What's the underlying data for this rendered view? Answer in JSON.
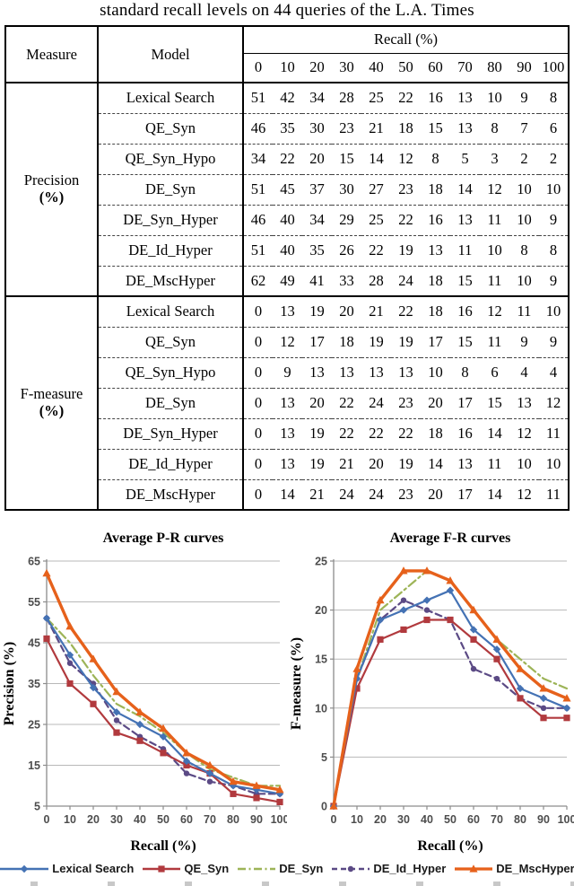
{
  "caption": "standard recall levels on 44 queries of the L.A. Times",
  "table": {
    "measure_header": "Measure",
    "model_header": "Model",
    "recall_header": "Recall (%)",
    "recall_levels": [
      "0",
      "10",
      "20",
      "30",
      "40",
      "50",
      "60",
      "70",
      "80",
      "90",
      "100"
    ],
    "sections": [
      {
        "measure": "Precision",
        "unit": "(%)",
        "rows": [
          {
            "model": "Lexical Search",
            "values": [
              51,
              42,
              34,
              28,
              25,
              22,
              16,
              13,
              10,
              9,
              8
            ]
          },
          {
            "model": "QE_Syn",
            "values": [
              46,
              35,
              30,
              23,
              21,
              18,
              15,
              13,
              8,
              7,
              6
            ]
          },
          {
            "model": "QE_Syn_Hypo",
            "values": [
              34,
              22,
              20,
              15,
              14,
              12,
              8,
              5,
              3,
              2,
              2
            ]
          },
          {
            "model": "DE_Syn",
            "values": [
              51,
              45,
              37,
              30,
              27,
              23,
              18,
              14,
              12,
              10,
              10
            ]
          },
          {
            "model": "DE_Syn_Hyper",
            "values": [
              46,
              40,
              34,
              29,
              25,
              22,
              16,
              13,
              11,
              10,
              9
            ]
          },
          {
            "model": "DE_Id_Hyper",
            "values": [
              51,
              40,
              35,
              26,
              22,
              19,
              13,
              11,
              10,
              8,
              8
            ]
          },
          {
            "model": "DE_MscHyper",
            "values": [
              62,
              49,
              41,
              33,
              28,
              24,
              18,
              15,
              11,
              10,
              9
            ]
          }
        ]
      },
      {
        "measure": "F-measure",
        "unit": "(%)",
        "rows": [
          {
            "model": "Lexical Search",
            "values": [
              0,
              13,
              19,
              20,
              21,
              22,
              18,
              16,
              12,
              11,
              10
            ]
          },
          {
            "model": "QE_Syn",
            "values": [
              0,
              12,
              17,
              18,
              19,
              19,
              17,
              15,
              11,
              9,
              9
            ]
          },
          {
            "model": "QE_Syn_Hypo",
            "values": [
              0,
              9,
              13,
              13,
              13,
              13,
              10,
              8,
              6,
              4,
              4
            ]
          },
          {
            "model": "DE_Syn",
            "values": [
              0,
              13,
              20,
              22,
              24,
              23,
              20,
              17,
              15,
              13,
              12
            ]
          },
          {
            "model": "DE_Syn_Hyper",
            "values": [
              0,
              13,
              19,
              22,
              22,
              22,
              18,
              16,
              14,
              12,
              11
            ]
          },
          {
            "model": "DE_Id_Hyper",
            "values": [
              0,
              13,
              19,
              21,
              20,
              19,
              14,
              13,
              11,
              10,
              10
            ]
          },
          {
            "model": "DE_MscHyper",
            "values": [
              0,
              14,
              21,
              24,
              24,
              23,
              20,
              17,
              14,
              12,
              11
            ]
          }
        ]
      }
    ]
  },
  "series_styles": {
    "Lexical Search": {
      "color": "#4472B4",
      "marker": "diamond",
      "dash": "solid",
      "width": 2.2
    },
    "QE_Syn": {
      "color": "#B13A3E",
      "marker": "square",
      "dash": "solid",
      "width": 2.2
    },
    "DE_Syn": {
      "color": "#9DB457",
      "marker": "none",
      "dash": "dashdot",
      "width": 2.2
    },
    "DE_Id_Hyper": {
      "color": "#5B4A85",
      "marker": "circle",
      "dash": "dashed",
      "width": 2.2
    },
    "DE_MscHyper": {
      "color": "#E6611B",
      "marker": "triangle",
      "dash": "solid",
      "width": 3.4
    }
  },
  "chart_colors": {
    "grid": "#b8b8b8",
    "axis": "#8c8c8c",
    "tick_text": "#4d4d4d"
  },
  "chart_data": [
    {
      "type": "line",
      "title": "Average P-R curves",
      "xlabel": "Recall (%)",
      "ylabel": "Precision (%)",
      "x": [
        0,
        10,
        20,
        30,
        40,
        50,
        60,
        70,
        80,
        90,
        100
      ],
      "xlim": [
        0,
        100
      ],
      "ylim": [
        5,
        65
      ],
      "yticks": [
        5,
        15,
        25,
        35,
        45,
        55,
        65
      ],
      "grid": true,
      "legend_position": "bottom-shared",
      "series": [
        {
          "name": "DE_Syn",
          "values": [
            51,
            45,
            37,
            30,
            27,
            23,
            18,
            14,
            12,
            10,
            10
          ]
        },
        {
          "name": "DE_Id_Hyper",
          "values": [
            51,
            40,
            35,
            26,
            22,
            19,
            13,
            11,
            10,
            8,
            8
          ]
        },
        {
          "name": "QE_Syn",
          "values": [
            46,
            35,
            30,
            23,
            21,
            18,
            15,
            13,
            8,
            7,
            6
          ]
        },
        {
          "name": "Lexical Search",
          "values": [
            51,
            42,
            34,
            28,
            25,
            22,
            16,
            13,
            10,
            9,
            8
          ]
        },
        {
          "name": "DE_MscHyper",
          "values": [
            62,
            49,
            41,
            33,
            28,
            24,
            18,
            15,
            11,
            10,
            9
          ]
        }
      ]
    },
    {
      "type": "line",
      "title": "Average F-R curves",
      "xlabel": "Recall (%)",
      "ylabel": "F-measure (%)",
      "x": [
        0,
        10,
        20,
        30,
        40,
        50,
        60,
        70,
        80,
        90,
        100
      ],
      "xlim": [
        0,
        100
      ],
      "ylim": [
        0,
        25
      ],
      "yticks": [
        0,
        5,
        10,
        15,
        20,
        25
      ],
      "grid": true,
      "legend_position": "bottom-shared",
      "series": [
        {
          "name": "DE_Syn",
          "values": [
            0,
            13,
            20,
            22,
            24,
            23,
            20,
            17,
            15,
            13,
            12
          ]
        },
        {
          "name": "DE_Id_Hyper",
          "values": [
            0,
            13,
            19,
            21,
            20,
            19,
            14,
            13,
            11,
            10,
            10
          ]
        },
        {
          "name": "QE_Syn",
          "values": [
            0,
            12,
            17,
            18,
            19,
            19,
            17,
            15,
            11,
            9,
            9
          ]
        },
        {
          "name": "Lexical Search",
          "values": [
            0,
            13,
            19,
            20,
            21,
            22,
            18,
            16,
            12,
            11,
            10
          ]
        },
        {
          "name": "DE_MscHyper",
          "values": [
            0,
            14,
            21,
            24,
            24,
            23,
            20,
            17,
            14,
            12,
            11
          ]
        }
      ]
    }
  ],
  "legend": {
    "items": [
      "Lexical Search",
      "QE_Syn",
      "DE_Syn",
      "DE_Id_Hyper",
      "DE_MscHyper"
    ]
  }
}
